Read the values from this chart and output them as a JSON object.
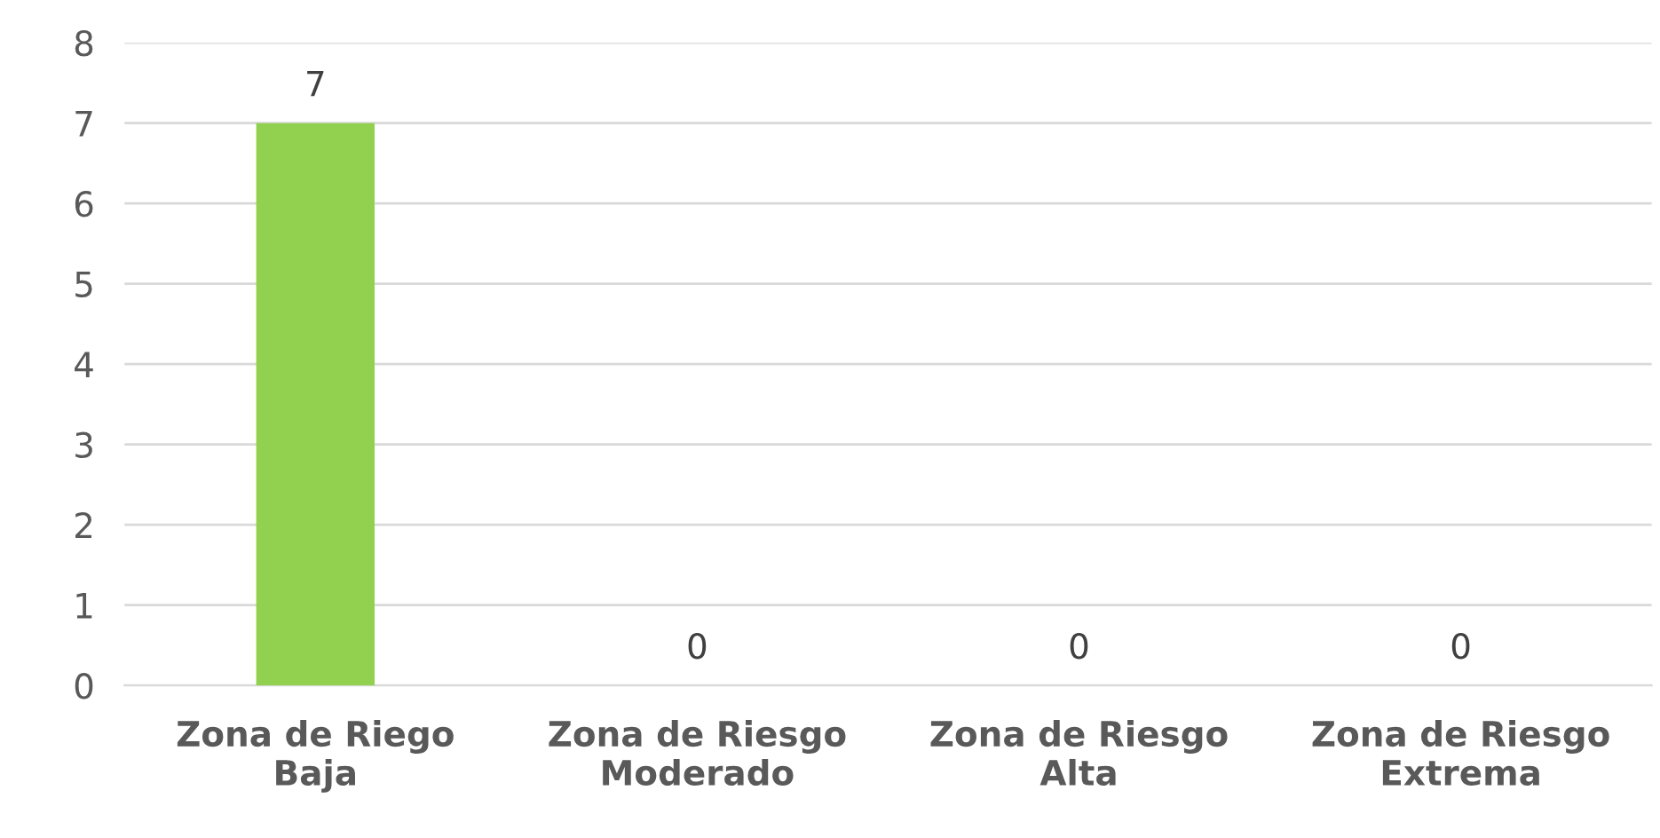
{
  "chart_data": {
    "type": "bar",
    "categories": [
      "Zona de Riego Baja",
      "Zona de Riesgo Moderado",
      "Zona de Riesgo Alta",
      "Zona de Riesgo Extrema"
    ],
    "values": [
      7,
      0,
      0,
      0
    ],
    "color": "#92d050",
    "ylim": [
      0,
      8
    ],
    "yticks": [
      0,
      1,
      2,
      3,
      4,
      5,
      6,
      7,
      8
    ],
    "grid": "y",
    "data_labels": true
  }
}
